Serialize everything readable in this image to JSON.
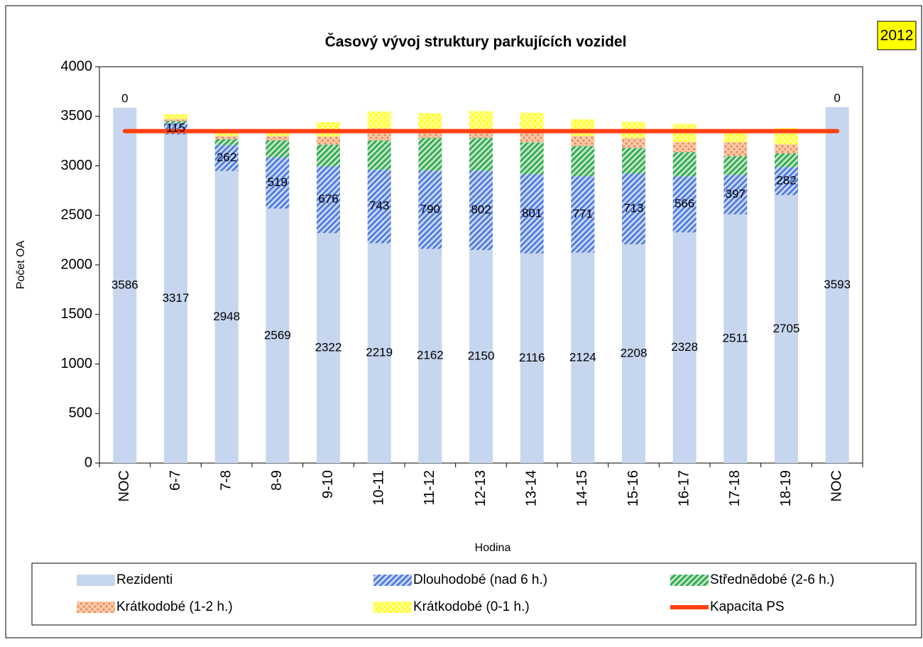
{
  "chart_data": {
    "type": "bar",
    "stacked": true,
    "title": "Časový vývoj struktury parkujících vozidel",
    "annotation": "2012",
    "xlabel": "Hodina",
    "ylabel": "Počet OA",
    "categories": [
      "NOC",
      "6-7",
      "7-8",
      "8-9",
      "9-10",
      "10-11",
      "11-12",
      "12-13",
      "13-14",
      "14-15",
      "15-16",
      "16-17",
      "17-18",
      "18-19",
      "NOC"
    ],
    "ylim": [
      0,
      4000
    ],
    "yticks": [
      0,
      500,
      1000,
      1500,
      2000,
      2500,
      3000,
      3500,
      4000
    ],
    "series": [
      {
        "name": "Rezidenti",
        "color": "#c6d6ee",
        "pattern": "solid",
        "data_labels": true,
        "values": [
          3586,
          3317,
          2948,
          2569,
          2322,
          2219,
          2162,
          2150,
          2116,
          2124,
          2208,
          2328,
          2511,
          2705,
          3593
        ]
      },
      {
        "name": "Dlouhodobé (nad 6 h.)",
        "color": "#4a78dc",
        "pattern": "hatch",
        "data_labels": true,
        "values": [
          0,
          115,
          262,
          519,
          676,
          743,
          790,
          802,
          801,
          771,
          713,
          566,
          397,
          282,
          0
        ]
      },
      {
        "name": "Střednědobé (2-6 h.)",
        "color": "#2ea84a",
        "pattern": "hatch",
        "data_labels": false,
        "values": [
          0,
          20,
          60,
          170,
          216,
          295,
          330,
          330,
          320,
          305,
          260,
          245,
          190,
          140,
          0
        ]
      },
      {
        "name": "Krátkodobé (1-2 h.)",
        "color": "#f08a4b",
        "pattern": "dots",
        "data_labels": false,
        "values": [
          0,
          20,
          30,
          40,
          80,
          120,
          90,
          90,
          110,
          100,
          100,
          100,
          140,
          90,
          0
        ]
      },
      {
        "name": "Krátkodobé (0-1 h.)",
        "color": "#ffff00",
        "pattern": "dots",
        "data_labels": false,
        "values": [
          0,
          50,
          30,
          60,
          150,
          170,
          160,
          180,
          190,
          170,
          165,
          185,
          100,
          165,
          0
        ]
      },
      {
        "name": "Kapacita PS",
        "color": "#ff4010",
        "type": "line",
        "values": [
          3350,
          3350,
          3350,
          3350,
          3350,
          3350,
          3350,
          3350,
          3350,
          3350,
          3350,
          3350,
          3350,
          3350,
          3350
        ]
      }
    ]
  }
}
